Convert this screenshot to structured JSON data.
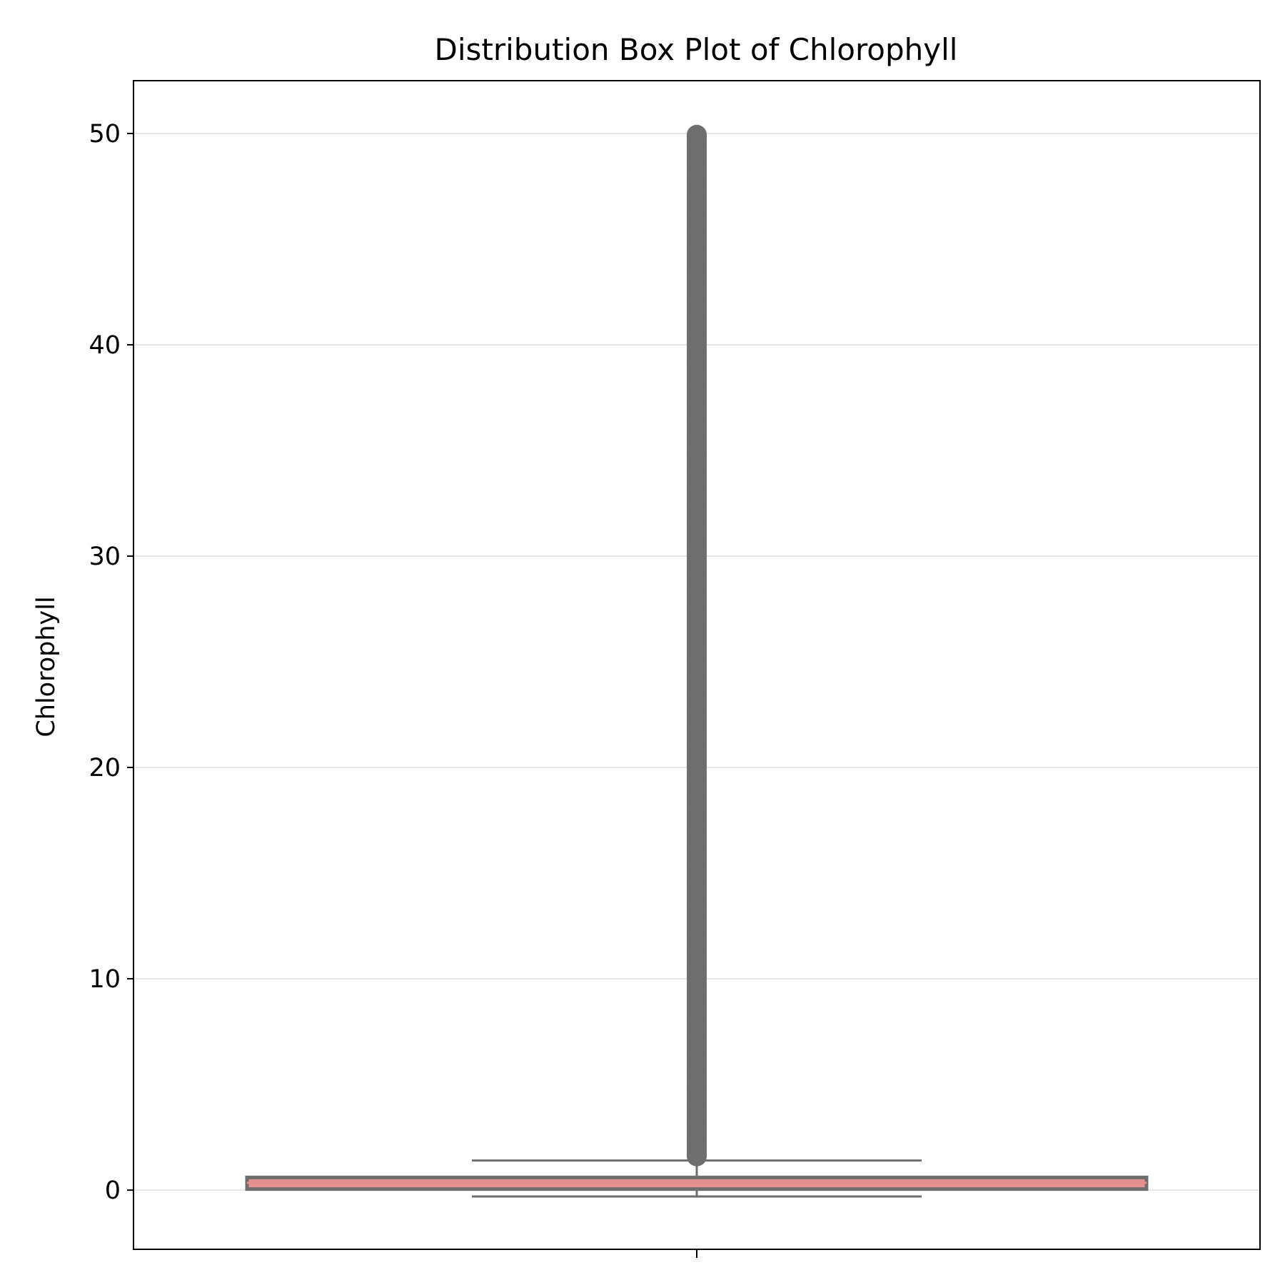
{
  "chart_data": {
    "type": "box",
    "title": "Distribution Box Plot of Chlorophyll",
    "xlabel": "",
    "ylabel": "Chlorophyll",
    "ylim": [
      -2.8,
      52.5
    ],
    "yticks": [
      0,
      10,
      20,
      30,
      40,
      50
    ],
    "grid": "y",
    "legend": "none",
    "box": {
      "whisker_low": -0.3,
      "q1": 0.05,
      "median": 0.35,
      "q3": 0.6,
      "whisker_high": 1.4
    },
    "outliers": {
      "min": 1.6,
      "max": 50.0
    },
    "colors": {
      "box_fill": "#e48f92",
      "box_edge": "#6e6e6e",
      "whisker": "#6e6e6e",
      "outlier": "#6e6e6e",
      "grid": "#e6e6e6"
    }
  }
}
